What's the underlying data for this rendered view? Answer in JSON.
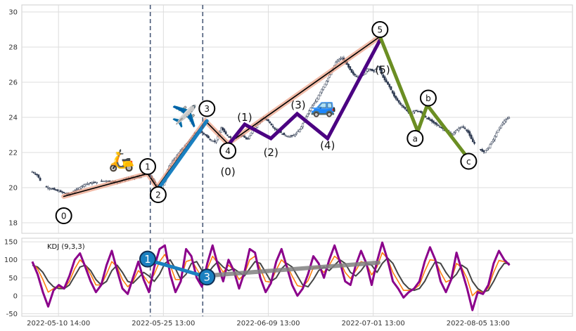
{
  "chart_data": [
    {
      "type": "candlestick",
      "panel": "price",
      "ylim": [
        17.4,
        30.4
      ],
      "yticks": [
        18,
        20,
        22,
        24,
        26,
        28,
        30
      ],
      "x_range": [
        -2,
        103
      ],
      "xtick_labels": [
        {
          "i": 5,
          "label": "2022-05-10 14:00"
        },
        {
          "i": 25,
          "label": "2022-05-25 13:00"
        },
        {
          "i": 45,
          "label": "2022-06-09 13:00"
        },
        {
          "i": 65,
          "label": "2022-07-01 13:00"
        },
        {
          "i": 85,
          "label": "2022-08-05 13:00"
        }
      ],
      "vlines": [
        22.5,
        32.5
      ],
      "price_path": [
        [
          0,
          20.9
        ],
        [
          1,
          20.7
        ],
        [
          2,
          20.1
        ],
        [
          3,
          20.0
        ],
        [
          4,
          19.9
        ],
        [
          5,
          19.8
        ],
        [
          7,
          19.6
        ],
        [
          8,
          19.8
        ],
        [
          9,
          20.0
        ],
        [
          10,
          20.2
        ],
        [
          12,
          20.3
        ],
        [
          14,
          20.4
        ],
        [
          16,
          20.3
        ],
        [
          18,
          20.5
        ],
        [
          20,
          20.6
        ],
        [
          22,
          20.8
        ],
        [
          23,
          20.4
        ],
        [
          24.5,
          19.8
        ],
        [
          26,
          21.2
        ],
        [
          28,
          22.0
        ],
        [
          30,
          22.7
        ],
        [
          31,
          23.1
        ],
        [
          32,
          23.2
        ],
        [
          33,
          23.0
        ],
        [
          34,
          22.7
        ],
        [
          35,
          22.6
        ],
        [
          36,
          23.4
        ],
        [
          37,
          23.0
        ],
        [
          38,
          22.8
        ],
        [
          39,
          22.9
        ],
        [
          40,
          23.0
        ],
        [
          41,
          22.7
        ],
        [
          42,
          23.3
        ],
        [
          43,
          23.6
        ],
        [
          44,
          24.0
        ],
        [
          45,
          23.8
        ],
        [
          46,
          23.4
        ],
        [
          47,
          23.2
        ],
        [
          48,
          23.0
        ],
        [
          49,
          22.9
        ],
        [
          50,
          23.0
        ],
        [
          51,
          23.3
        ],
        [
          52,
          23.9
        ],
        [
          53,
          24.5
        ],
        [
          54,
          24.9
        ],
        [
          55,
          25.5
        ],
        [
          56,
          26.0
        ],
        [
          57,
          26.6
        ],
        [
          58,
          27.2
        ],
        [
          59,
          27.4
        ],
        [
          60,
          27.0
        ],
        [
          61,
          26.5
        ],
        [
          62,
          26.3
        ],
        [
          63,
          26.4
        ],
        [
          64,
          26.8
        ],
        [
          65,
          26.6
        ],
        [
          66,
          26.9
        ],
        [
          67,
          26.2
        ],
        [
          68,
          25.8
        ],
        [
          69,
          25.2
        ],
        [
          70,
          24.8
        ],
        [
          71,
          24.5
        ],
        [
          72,
          24.2
        ],
        [
          73,
          24.4
        ],
        [
          74,
          24.3
        ],
        [
          75,
          24.0
        ],
        [
          76,
          23.8
        ],
        [
          77,
          23.6
        ],
        [
          78,
          23.4
        ],
        [
          79,
          23.2
        ],
        [
          80,
          23.0
        ],
        [
          81,
          23.3
        ],
        [
          82,
          23.5
        ],
        [
          83,
          23.2
        ],
        [
          84,
          22.6
        ],
        [
          85,
          22.3
        ],
        [
          86,
          22.0
        ],
        [
          87,
          22.3
        ],
        [
          88,
          22.8
        ],
        [
          89,
          23.4
        ],
        [
          90,
          23.8
        ],
        [
          91,
          24.0
        ]
      ],
      "wave_lines": [
        {
          "name": "primary-salmon",
          "color": "#e9967a",
          "width": 7,
          "opacity": 0.65,
          "points": [
            [
              6,
              19.5
            ],
            [
              22,
              20.8
            ],
            [
              23.8,
              20.0
            ],
            [
              33,
              23.8
            ],
            [
              37.3,
              22.5
            ],
            [
              66.3,
              28.6
            ]
          ]
        },
        {
          "name": "primary-black",
          "color": "#000000",
          "width": 1.6,
          "opacity": 1,
          "points": [
            [
              6,
              19.5
            ],
            [
              22,
              20.8
            ],
            [
              23.8,
              20.0
            ],
            [
              33,
              23.8
            ],
            [
              37.3,
              22.5
            ],
            [
              66.3,
              28.6
            ]
          ]
        },
        {
          "name": "wave-3-blue",
          "color": "#1a80c0",
          "width": 5,
          "opacity": 1,
          "points": [
            [
              24.2,
              20.0
            ],
            [
              33.3,
              23.8
            ]
          ]
        },
        {
          "name": "sub-wave-purple",
          "color": "#4b0082",
          "width": 5,
          "opacity": 1,
          "points": [
            [
              37.3,
              22.4
            ],
            [
              40.5,
              23.6
            ],
            [
              45.5,
              22.8
            ],
            [
              50.5,
              24.2
            ],
            [
              56.3,
              22.8
            ],
            [
              66.3,
              28.4
            ]
          ]
        },
        {
          "name": "correction-olive",
          "color": "#6b8e23",
          "width": 5,
          "opacity": 1,
          "points": [
            [
              66.3,
              28.6
            ],
            [
              73.5,
              23.2
            ],
            [
              75.3,
              24.7
            ],
            [
              82.5,
              21.9
            ]
          ]
        }
      ],
      "circle_labels": [
        {
          "text": "0",
          "i": 6,
          "y": 18.4
        },
        {
          "text": "1",
          "i": 22,
          "y": 21.2
        },
        {
          "text": "2",
          "i": 24,
          "y": 19.6
        },
        {
          "text": "3",
          "i": 33.3,
          "y": 24.5
        },
        {
          "text": "4",
          "i": 37.3,
          "y": 22.1
        },
        {
          "text": "5",
          "i": 66.3,
          "y": 29.0
        },
        {
          "text": "a",
          "i": 73.0,
          "y": 22.8
        },
        {
          "text": "b",
          "i": 75.5,
          "y": 25.1
        },
        {
          "text": "c",
          "i": 83.2,
          "y": 21.5
        }
      ],
      "text_labels": [
        {
          "text": "(0)",
          "i": 37.3,
          "y": 20.9
        },
        {
          "text": "(1)",
          "i": 40.5,
          "y": 24.0
        },
        {
          "text": "(2)",
          "i": 45.5,
          "y": 22.0
        },
        {
          "text": "(3)",
          "i": 50.7,
          "y": 24.7
        },
        {
          "text": "(4)",
          "i": 56.3,
          "y": 22.4
        },
        {
          "text": "(5)",
          "i": 66.8,
          "y": 26.7
        }
      ],
      "emoji_icons": [
        {
          "name": "scooter-icon",
          "glyph": "🛵",
          "i": 17,
          "y": 21.5
        },
        {
          "name": "airplane-icon",
          "glyph": "✈️",
          "i": 29,
          "y": 24.0
        },
        {
          "name": "car-icon",
          "glyph": "🚙",
          "i": 55.5,
          "y": 24.6
        }
      ]
    },
    {
      "type": "line",
      "panel": "kdj",
      "title": "KDJ (9,3,3)",
      "ylim": [
        -57,
        160
      ],
      "yticks": [
        -50,
        0,
        50,
        100,
        150
      ],
      "series": [
        {
          "name": "J",
          "color": "#8b008b",
          "width": 3,
          "values": [
            95,
            60,
            10,
            -30,
            15,
            30,
            20,
            55,
            100,
            118,
            80,
            40,
            10,
            30,
            85,
            125,
            70,
            20,
            5,
            50,
            95,
            45,
            10,
            80,
            130,
            140,
            60,
            10,
            40,
            130,
            110,
            50,
            25,
            90,
            140,
            85,
            40,
            100,
            70,
            20,
            65,
            130,
            120,
            50,
            10,
            35,
            95,
            130,
            80,
            30,
            0,
            20,
            60,
            110,
            90,
            50,
            100,
            140,
            95,
            40,
            30,
            85,
            125,
            90,
            30,
            95,
            148,
            100,
            40,
            20,
            -5,
            10,
            20,
            40,
            95,
            135,
            100,
            40,
            10,
            45,
            120,
            70,
            20,
            -40,
            10,
            5,
            30,
            90,
            125,
            100,
            85
          ]
        },
        {
          "name": "D",
          "color": "#444444",
          "width": 2,
          "values": [
            85,
            80,
            65,
            40,
            25,
            20,
            20,
            30,
            55,
            80,
            85,
            70,
            45,
            30,
            40,
            70,
            85,
            65,
            40,
            35,
            50,
            65,
            55,
            40,
            60,
            90,
            100,
            75,
            45,
            60,
            90,
            95,
            70,
            60,
            80,
            95,
            80,
            70,
            75,
            65,
            55,
            75,
            95,
            90,
            65,
            40,
            50,
            75,
            90,
            80,
            55,
            30,
            25,
            45,
            70,
            80,
            70,
            85,
            100,
            90,
            65,
            55,
            70,
            90,
            85,
            65,
            90,
            105,
            90,
            60,
            35,
            20,
            15,
            20,
            40,
            70,
            95,
            90,
            65,
            45,
            60,
            85,
            75,
            40,
            20,
            10,
            15,
            40,
            70,
            90,
            90
          ]
        },
        {
          "name": "K",
          "color": "#ff7f0e",
          "width": 1.6,
          "values": [
            90,
            75,
            45,
            10,
            20,
            25,
            20,
            40,
            75,
            100,
            85,
            60,
            30,
            30,
            60,
            95,
            80,
            45,
            25,
            40,
            70,
            55,
            35,
            60,
            95,
            115,
            85,
            45,
            45,
            95,
            100,
            75,
            50,
            75,
            110,
            90,
            65,
            85,
            72,
            45,
            60,
            100,
            110,
            75,
            40,
            38,
            72,
            100,
            85,
            55,
            28,
            25,
            42,
            78,
            80,
            65,
            85,
            110,
            98,
            65,
            48,
            70,
            95,
            90,
            58,
            80,
            120,
            103,
            65,
            40,
            15,
            15,
            18,
            30,
            68,
            100,
            98,
            65,
            38,
            45,
            90,
            78,
            48,
            0,
            15,
            8,
            22,
            65,
            98,
            95,
            88
          ]
        }
      ],
      "overlays": [
        {
          "name": "kdj-blue-line",
          "color": "#1a80c0",
          "width": 5,
          "opacity": 1,
          "points": [
            [
              22,
              100
            ],
            [
              33.3,
              52
            ]
          ]
        },
        {
          "name": "kdj-gray-line",
          "color": "#808080",
          "width": 6,
          "opacity": 0.85,
          "points": [
            [
              33.3,
              56
            ],
            [
              66,
              92
            ]
          ]
        }
      ],
      "circle_labels": [
        {
          "text": "1",
          "i": 22,
          "y": 102
        },
        {
          "text": "3",
          "i": 33.3,
          "y": 52
        }
      ]
    }
  ]
}
